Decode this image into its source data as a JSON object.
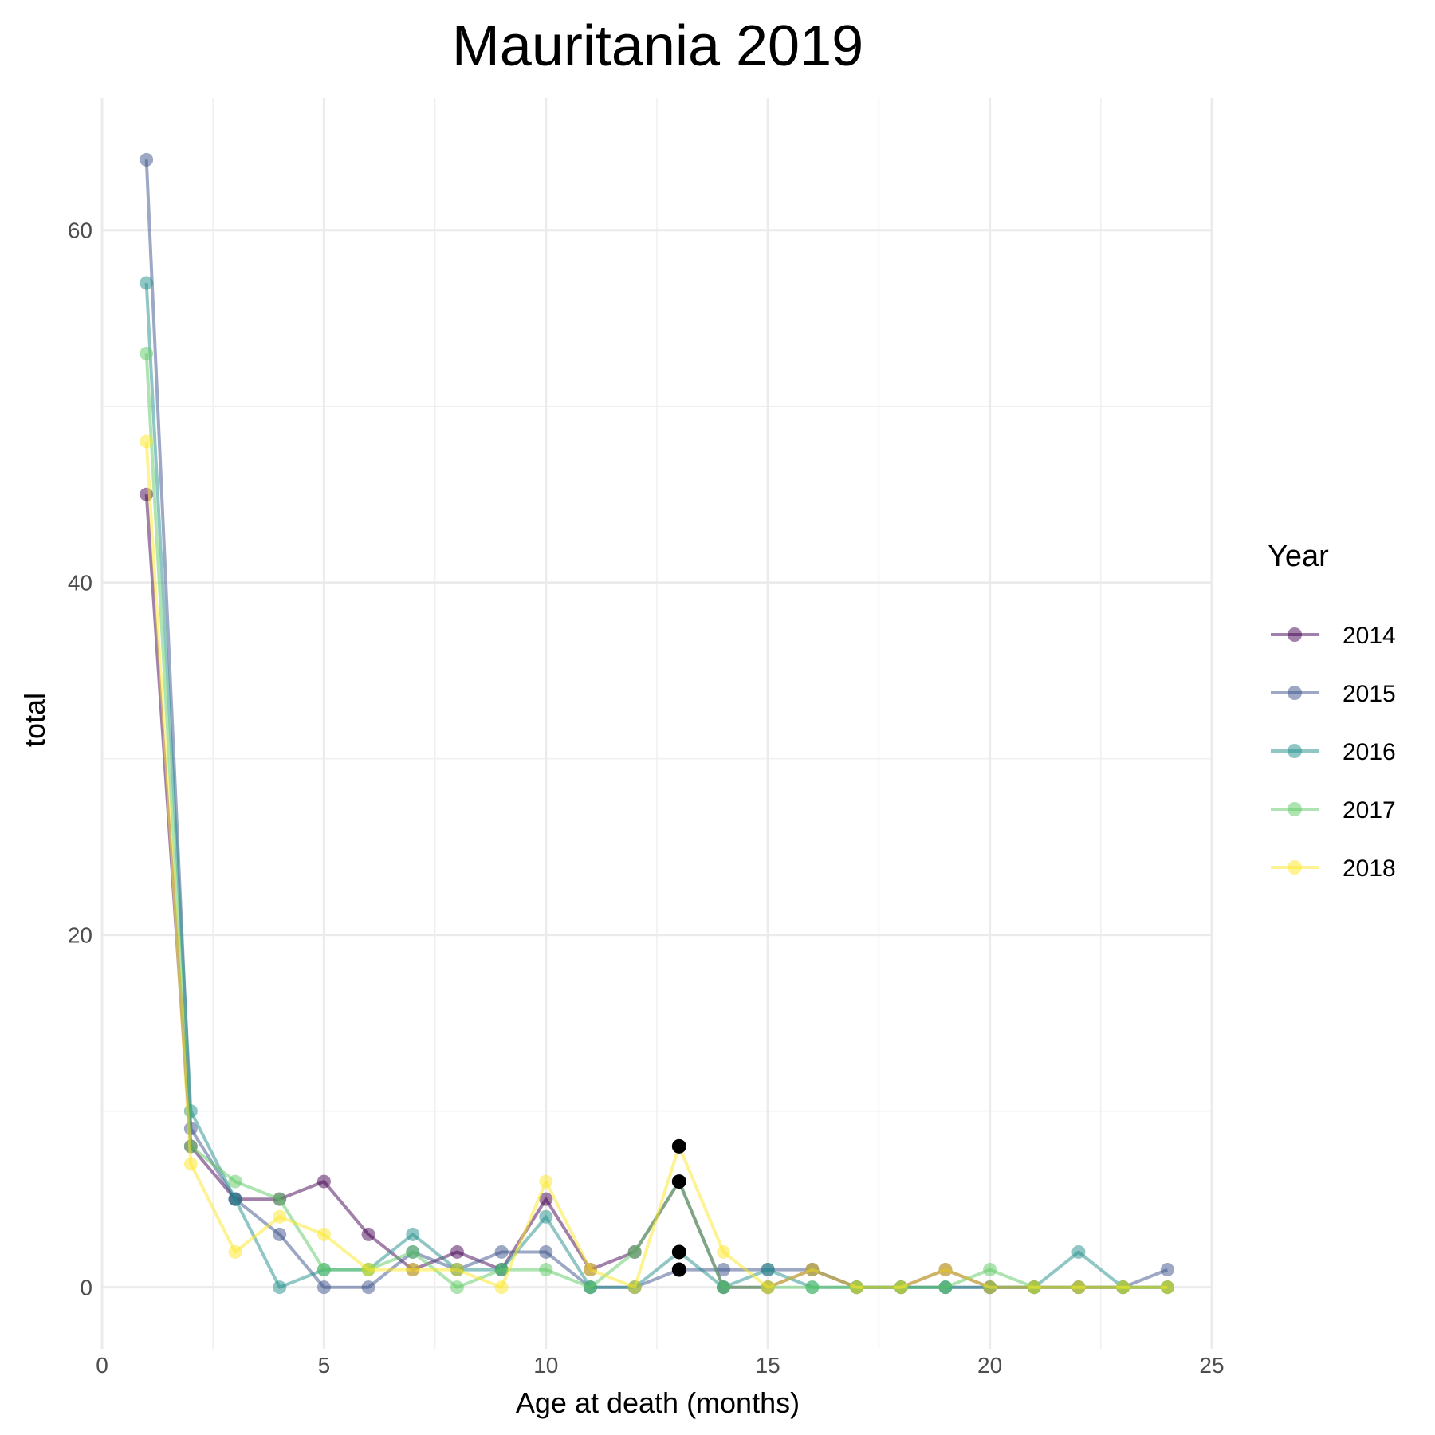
{
  "chart_data": {
    "type": "line",
    "title": "Mauritania 2019",
    "xlabel": "Age at death (months)",
    "ylabel": "total",
    "xlim": [
      0,
      25
    ],
    "ylim": [
      -3.5,
      67.5
    ],
    "x_ticks": [
      0,
      5,
      10,
      15,
      20,
      25
    ],
    "y_ticks": [
      0,
      20,
      40,
      60
    ],
    "grid": true,
    "legend": {
      "title": "Year",
      "position": "right"
    },
    "x": [
      1,
      2,
      3,
      4,
      5,
      6,
      7,
      8,
      9,
      10,
      11,
      12,
      13,
      14,
      15,
      16,
      17,
      18,
      19,
      20,
      21,
      22,
      23,
      24
    ],
    "series": [
      {
        "name": "2014",
        "color": "#440154",
        "values": [
          45,
          8,
          5,
          5,
          6,
          3,
          1,
          2,
          1,
          5,
          1,
          2,
          6,
          0,
          0,
          1,
          0,
          0,
          1,
          0,
          0,
          0,
          0,
          0
        ]
      },
      {
        "name": "2015",
        "color": "#3b528b",
        "values": [
          64,
          9,
          5,
          3,
          0,
          0,
          2,
          1,
          2,
          2,
          0,
          0,
          1,
          1,
          1,
          1,
          0,
          0,
          0,
          0,
          0,
          0,
          0,
          1
        ]
      },
      {
        "name": "2016",
        "color": "#21908c",
        "values": [
          57,
          10,
          5,
          0,
          1,
          1,
          3,
          1,
          1,
          4,
          0,
          0,
          2,
          0,
          1,
          0,
          0,
          0,
          0,
          0,
          0,
          2,
          0,
          0
        ]
      },
      {
        "name": "2017",
        "color": "#5dc963",
        "values": [
          53,
          8,
          6,
          5,
          1,
          1,
          2,
          0,
          1,
          1,
          0,
          2,
          6,
          0,
          0,
          0,
          0,
          0,
          0,
          1,
          0,
          0,
          0,
          0
        ]
      },
      {
        "name": "2018",
        "color": "#fde725",
        "values": [
          48,
          7,
          2,
          4,
          3,
          1,
          1,
          1,
          0,
          6,
          1,
          0,
          8,
          2,
          0,
          1,
          0,
          0,
          1,
          0,
          0,
          0,
          0,
          0
        ]
      }
    ],
    "highlight_points": {
      "color": "#000000",
      "x": [
        13,
        13,
        13,
        13
      ],
      "y": [
        8,
        6,
        2,
        1
      ]
    }
  }
}
